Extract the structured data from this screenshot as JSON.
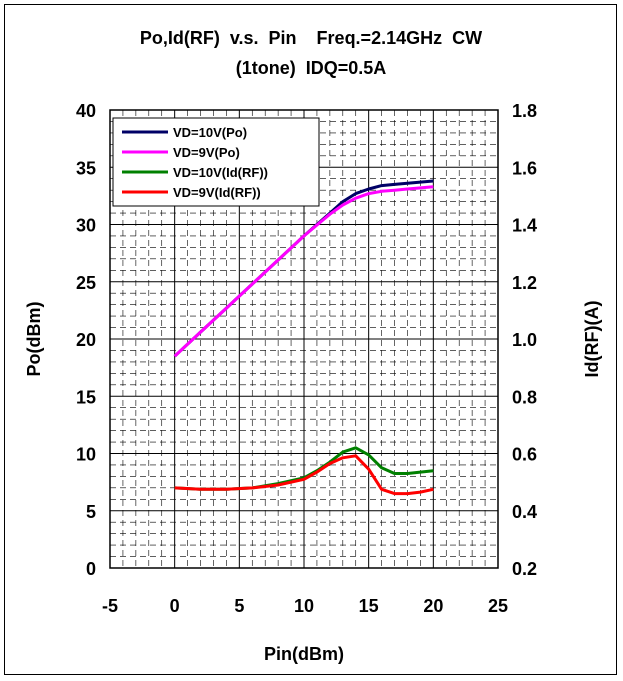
{
  "chart_data": {
    "type": "line",
    "title_line1": "Po,Id(RF)  v.s.  Pin    Freq.=2.14GHz  CW",
    "title_line2": "(1tone)  IDQ=0.5A",
    "xlabel": "Pin(dBm)",
    "ylabel_left": "Po(dBm)",
    "ylabel_right": "Id(RF)(A)",
    "xlim": [
      -5,
      25
    ],
    "ylim_left": [
      0,
      40
    ],
    "ylim_right": [
      0.2,
      1.8
    ],
    "x_ticks": [
      "-5",
      "0",
      "5",
      "10",
      "15",
      "20",
      "25"
    ],
    "y_left_ticks": [
      "0",
      "5",
      "10",
      "15",
      "20",
      "25",
      "30",
      "35",
      "40"
    ],
    "y_right_ticks": [
      "0.2",
      "0.4",
      "0.6",
      "0.8",
      "1.0",
      "1.2",
      "1.4",
      "1.6",
      "1.8"
    ],
    "grid": true,
    "legend_position": "top-left",
    "series": [
      {
        "name": "VD=10V(Po)",
        "axis": "left",
        "color": "#000066",
        "x": [
          0,
          2,
          4,
          6,
          8,
          10,
          12,
          13,
          14,
          15,
          16,
          17,
          18,
          19,
          20
        ],
        "y": [
          18.5,
          20.6,
          22.7,
          24.8,
          26.9,
          29.0,
          31.0,
          32.0,
          32.7,
          33.1,
          33.4,
          33.5,
          33.6,
          33.7,
          33.8
        ]
      },
      {
        "name": "VD=9V(Po)",
        "axis": "left",
        "color": "#ff00ff",
        "x": [
          0,
          2,
          4,
          6,
          8,
          10,
          12,
          13,
          14,
          15,
          16,
          17,
          18,
          19,
          20
        ],
        "y": [
          18.5,
          20.6,
          22.7,
          24.8,
          26.9,
          29.0,
          30.9,
          31.7,
          32.3,
          32.7,
          32.9,
          33.0,
          33.1,
          33.2,
          33.3
        ]
      },
      {
        "name": "VD=10V(Id(RF))",
        "axis": "right",
        "color": "#008000",
        "x": [
          0,
          2,
          4,
          6,
          8,
          10,
          11,
          12,
          13,
          14,
          15,
          16,
          17,
          18,
          19,
          20
        ],
        "y": [
          0.48,
          0.475,
          0.475,
          0.48,
          0.495,
          0.515,
          0.54,
          0.57,
          0.605,
          0.62,
          0.595,
          0.55,
          0.53,
          0.53,
          0.535,
          0.54
        ]
      },
      {
        "name": "VD=9V(Id(RF))",
        "axis": "right",
        "color": "#ff0000",
        "x": [
          0,
          2,
          4,
          6,
          8,
          10,
          11,
          12,
          13,
          14,
          15,
          16,
          17,
          18,
          19,
          20
        ],
        "y": [
          0.48,
          0.475,
          0.475,
          0.48,
          0.49,
          0.51,
          0.535,
          0.565,
          0.585,
          0.592,
          0.545,
          0.475,
          0.46,
          0.46,
          0.465,
          0.475
        ]
      }
    ]
  }
}
